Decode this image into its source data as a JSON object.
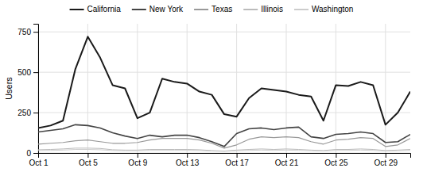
{
  "chart_data": {
    "type": "line",
    "ylabel": "Users",
    "x": [
      1,
      2,
      3,
      4,
      5,
      6,
      7,
      8,
      9,
      10,
      11,
      12,
      13,
      14,
      15,
      16,
      17,
      18,
      19,
      20,
      21,
      22,
      23,
      24,
      25,
      26,
      27,
      28,
      29,
      30,
      31
    ],
    "xlim": [
      1,
      31
    ],
    "xticks": [
      {
        "value": 1,
        "label": "Oct 1"
      },
      {
        "value": 5,
        "label": "Oct 5"
      },
      {
        "value": 9,
        "label": "Oct 9"
      },
      {
        "value": 13,
        "label": "Oct 13"
      },
      {
        "value": 17,
        "label": "Oct 17"
      },
      {
        "value": 21,
        "label": "Oct 21"
      },
      {
        "value": 25,
        "label": "Oct 25"
      },
      {
        "value": 29,
        "label": "Oct 29"
      }
    ],
    "ylim": [
      0,
      800
    ],
    "yticks": [
      0,
      250,
      500,
      750
    ],
    "grid": true,
    "legend": "top",
    "series": [
      {
        "name": "California",
        "color": "#1a1a1a",
        "values": [
          155,
          170,
          200,
          520,
          720,
          590,
          420,
          400,
          215,
          250,
          460,
          440,
          430,
          380,
          360,
          240,
          225,
          340,
          400,
          390,
          380,
          360,
          350,
          200,
          420,
          415,
          440,
          420,
          175,
          250,
          380
        ]
      },
      {
        "name": "New York",
        "color": "#444444",
        "values": [
          130,
          140,
          150,
          175,
          170,
          155,
          125,
          105,
          90,
          110,
          100,
          110,
          110,
          95,
          70,
          40,
          120,
          150,
          155,
          145,
          155,
          160,
          100,
          90,
          115,
          120,
          130,
          120,
          65,
          70,
          115
        ]
      },
      {
        "name": "Texas",
        "color": "#999999",
        "values": [
          55,
          60,
          65,
          75,
          80,
          70,
          60,
          60,
          65,
          80,
          90,
          90,
          90,
          80,
          60,
          30,
          50,
          85,
          100,
          95,
          100,
          95,
          70,
          55,
          80,
          85,
          95,
          90,
          40,
          50,
          90
        ]
      },
      {
        "name": "Illinois",
        "color": "#bbbbbb",
        "values": [
          20,
          22,
          25,
          30,
          30,
          28,
          20,
          18,
          18,
          22,
          22,
          22,
          22,
          20,
          15,
          12,
          18,
          22,
          25,
          22,
          25,
          22,
          18,
          15,
          22,
          22,
          25,
          22,
          15,
          18,
          22
        ]
      },
      {
        "name": "Washington",
        "color": "#cccccc",
        "values": [
          15,
          16,
          18,
          22,
          22,
          20,
          15,
          14,
          14,
          16,
          16,
          16,
          16,
          15,
          12,
          10,
          14,
          16,
          18,
          16,
          18,
          16,
          14,
          12,
          16,
          16,
          18,
          16,
          12,
          14,
          16
        ]
      }
    ]
  }
}
